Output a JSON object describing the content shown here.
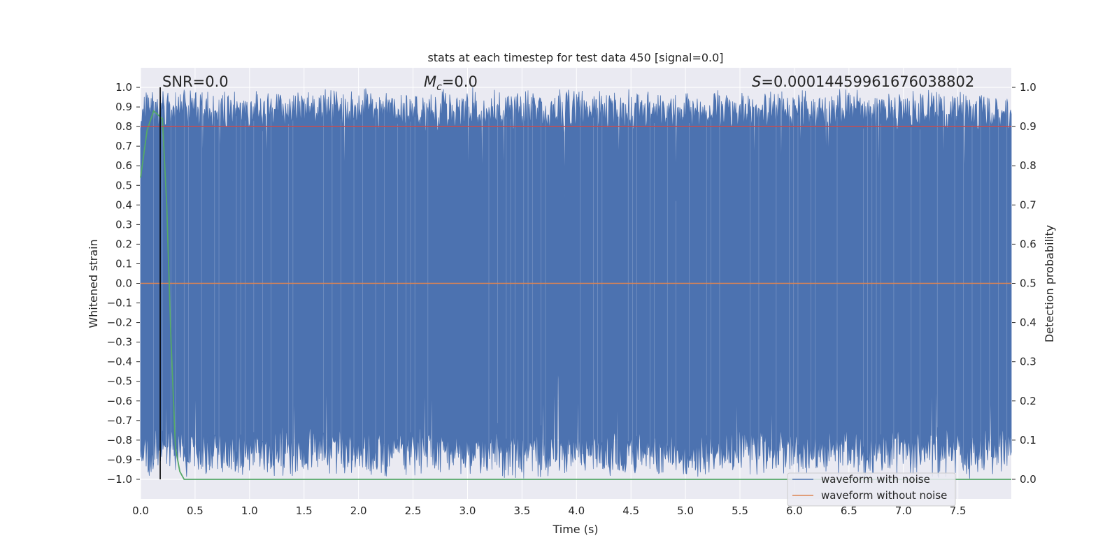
{
  "chart_data": {
    "type": "line",
    "title": "stats at each timestep for test data 450 [signal=0.0]",
    "xlabel": "Time (s)",
    "ylabel": "Whitened strain",
    "ylabel_right": "Detection probability",
    "xlim": [
      0.0,
      7.99
    ],
    "ylim": [
      -1.1,
      1.1
    ],
    "ylim_right": [
      -0.05,
      1.05
    ],
    "x_ticks": [
      "0.0",
      "0.5",
      "1.0",
      "1.5",
      "2.0",
      "2.5",
      "3.0",
      "3.5",
      "4.0",
      "4.5",
      "5.0",
      "5.5",
      "6.0",
      "6.5",
      "7.0",
      "7.5"
    ],
    "y_ticks": [
      "1.0",
      "0.9",
      "0.8",
      "0.7",
      "0.6",
      "0.5",
      "0.4",
      "0.3",
      "0.2",
      "0.1",
      "0.0",
      "−0.1",
      "−0.2",
      "−0.3",
      "−0.4",
      "−0.5",
      "−0.6",
      "−0.7",
      "−0.8",
      "−0.9",
      "−1.0"
    ],
    "y_ticks_right": [
      "1.0",
      "0.9",
      "0.8",
      "0.7",
      "0.6",
      "0.5",
      "0.4",
      "0.3",
      "0.2",
      "0.1",
      "0.0"
    ],
    "grid": true,
    "legend_position": "lower-right",
    "annotations": {
      "snr": "SNR=0.0",
      "mc_symbol": "M",
      "mc_sub": "c",
      "mc_value": "=0.0",
      "s_symbol": "S",
      "s_value": "=0.00014459961676038802"
    },
    "marker_line_x": 0.18,
    "threshold_right": 0.9,
    "series": [
      {
        "name": "waveform with noise",
        "color": "#4c72b0",
        "axis": "left",
        "envelope": {
          "x_range": [
            0.0,
            7.99
          ],
          "high_base": 0.94,
          "high_min_dip": 0.35,
          "low_base": -0.93,
          "low_max_spike": -0.32
        }
      },
      {
        "name": "waveform without noise",
        "color": "#dd8452",
        "axis": "left",
        "x": [
          0.0,
          7.99
        ],
        "y": [
          0.0,
          0.0
        ]
      },
      {
        "color": "#55a868",
        "axis": "right",
        "x": [
          0.0,
          0.06,
          0.12,
          0.16,
          0.2,
          0.24,
          0.28,
          0.32,
          0.36,
          0.4,
          8.0
        ],
        "y": [
          0.77,
          0.89,
          0.94,
          0.93,
          0.92,
          0.7,
          0.35,
          0.08,
          0.02,
          0.0,
          0.0
        ]
      }
    ]
  }
}
